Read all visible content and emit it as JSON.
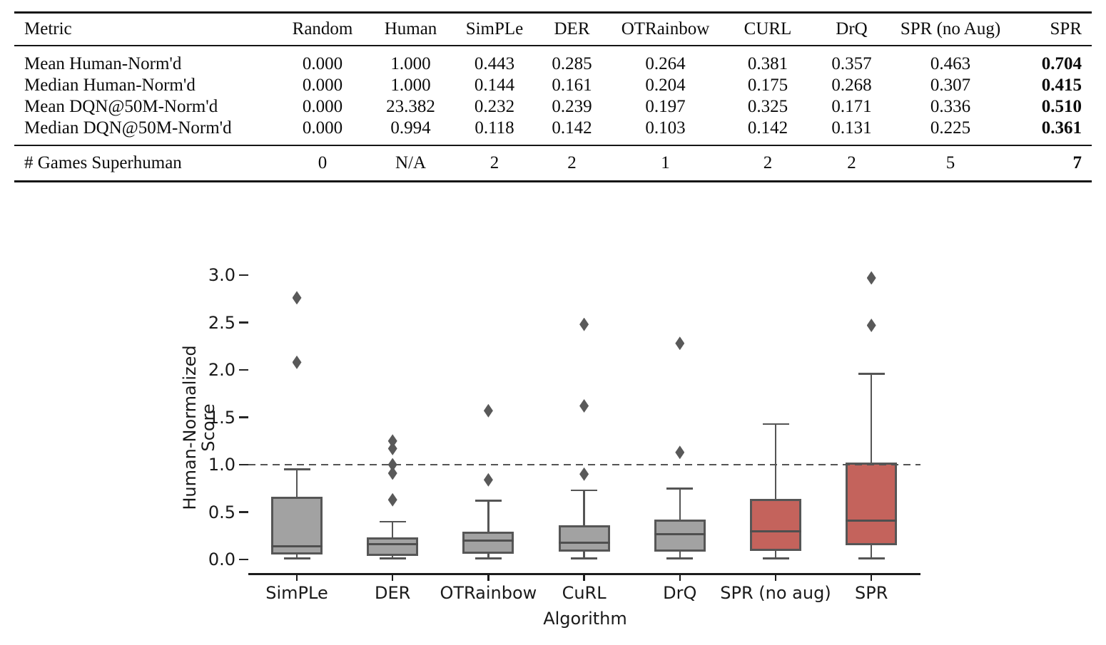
{
  "table": {
    "columns": [
      "Metric",
      "Random",
      "Human",
      "SimPLe",
      "DER",
      "OTRainbow",
      "CURL",
      "DrQ",
      "SPR (no Aug)",
      "SPR"
    ],
    "rows": [
      {
        "metric": "Mean Human-Norm'd",
        "values": [
          "0.000",
          "1.000",
          "0.443",
          "0.285",
          "0.264",
          "0.381",
          "0.357",
          "0.463",
          "0.704"
        ]
      },
      {
        "metric": "Median Human-Norm'd",
        "values": [
          "0.000",
          "1.000",
          "0.144",
          "0.161",
          "0.204",
          "0.175",
          "0.268",
          "0.307",
          "0.415"
        ]
      },
      {
        "metric": "Mean DQN@50M-Norm'd",
        "values": [
          "0.000",
          "23.382",
          "0.232",
          "0.239",
          "0.197",
          "0.325",
          "0.171",
          "0.336",
          "0.510"
        ]
      },
      {
        "metric": "Median DQN@50M-Norm'd",
        "values": [
          "0.000",
          "0.994",
          "0.118",
          "0.142",
          "0.103",
          "0.142",
          "0.131",
          "0.225",
          "0.361"
        ]
      }
    ],
    "footer": {
      "metric": "# Games Superhuman",
      "values": [
        "0",
        "N/A",
        "2",
        "2",
        "1",
        "2",
        "2",
        "5",
        "7"
      ]
    }
  },
  "chart_data": {
    "type": "boxplot",
    "title": "",
    "xlabel": "Algorithm",
    "ylabel": "Human-Normalized Score",
    "ylim": [
      0.0,
      3.0
    ],
    "yticks": [
      0.0,
      0.5,
      1.0,
      1.5,
      2.0,
      2.5,
      3.0
    ],
    "reference_line": 1.0,
    "grid": false,
    "legend": "none",
    "categories": [
      "SimPLe",
      "DER",
      "OTRainbow",
      "CuRL",
      "DrQ",
      "SPR (no aug)",
      "SPR"
    ],
    "series": [
      {
        "label": "SimPLe",
        "whislo": 0.01,
        "q1": 0.05,
        "med": 0.14,
        "q3": 0.66,
        "whishi": 0.95,
        "outliers": [
          2.08,
          2.76
        ],
        "fill": "#a2a2a2"
      },
      {
        "label": "DER",
        "whislo": 0.01,
        "q1": 0.04,
        "med": 0.16,
        "q3": 0.23,
        "whishi": 0.4,
        "outliers": [
          0.63,
          0.91,
          1.0,
          1.17,
          1.25
        ],
        "fill": "#a2a2a2"
      },
      {
        "label": "OTRainbow",
        "whislo": 0.01,
        "q1": 0.06,
        "med": 0.2,
        "q3": 0.29,
        "whishi": 0.62,
        "outliers": [
          0.84,
          1.57
        ],
        "fill": "#a2a2a2"
      },
      {
        "label": "CuRL",
        "whislo": 0.01,
        "q1": 0.08,
        "med": 0.18,
        "q3": 0.36,
        "whishi": 0.73,
        "outliers": [
          0.9,
          1.62,
          2.48
        ],
        "fill": "#a2a2a2"
      },
      {
        "label": "DrQ",
        "whislo": 0.01,
        "q1": 0.08,
        "med": 0.27,
        "q3": 0.42,
        "whishi": 0.75,
        "outliers": [
          1.13,
          2.28
        ],
        "fill": "#a2a2a2"
      },
      {
        "label": "SPR (no aug)",
        "whislo": 0.01,
        "q1": 0.09,
        "med": 0.3,
        "q3": 0.64,
        "whishi": 1.43,
        "outliers": [],
        "fill": "#c4635c"
      },
      {
        "label": "SPR",
        "whislo": 0.01,
        "q1": 0.15,
        "med": 0.41,
        "q3": 1.02,
        "whishi": 1.96,
        "outliers": [
          2.47,
          2.97
        ],
        "fill": "#c4635c"
      }
    ],
    "colors": {
      "box_gray": "#a2a2a2",
      "box_red": "#c4635c",
      "line": "#555555",
      "axis": "#1c1c1c"
    }
  }
}
